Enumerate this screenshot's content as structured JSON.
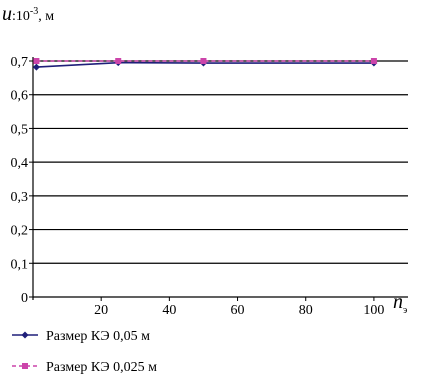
{
  "chart_data": {
    "type": "line",
    "ylabel": {
      "var": "u",
      "base": ":10",
      "exp": "-3",
      "unit": ", м"
    },
    "xlabel": {
      "var": "n",
      "sub": "э"
    },
    "xlim": [
      0,
      110
    ],
    "ylim": [
      0,
      0.7
    ],
    "xticks": [
      20,
      40,
      60,
      80,
      100
    ],
    "xtick_labels": [
      "20",
      "40",
      "60",
      "80",
      "100"
    ],
    "yticks": [
      0,
      0.1,
      0.2,
      0.3,
      0.4,
      0.5,
      0.6,
      0.7
    ],
    "ytick_labels": [
      "0",
      "0,1",
      "0,2",
      "0,3",
      "0,4",
      "0,5",
      "0,6",
      "0,7"
    ],
    "grid": "horizontal",
    "legend_position": "bottom-left",
    "series": [
      {
        "name": "Размер КЭ 0,05 м",
        "color": "#1f1f7a",
        "line_style": "solid",
        "marker": "diamond",
        "x": [
          1,
          25,
          50,
          100
        ],
        "y": [
          0.682,
          0.695,
          0.694,
          0.694
        ]
      },
      {
        "name": "Размер КЭ 0,025 м",
        "color": "#cc44aa",
        "line_style": "dashed",
        "marker": "square",
        "x": [
          1,
          25,
          50,
          100
        ],
        "y": [
          0.7,
          0.7,
          0.7,
          0.7
        ]
      }
    ]
  }
}
